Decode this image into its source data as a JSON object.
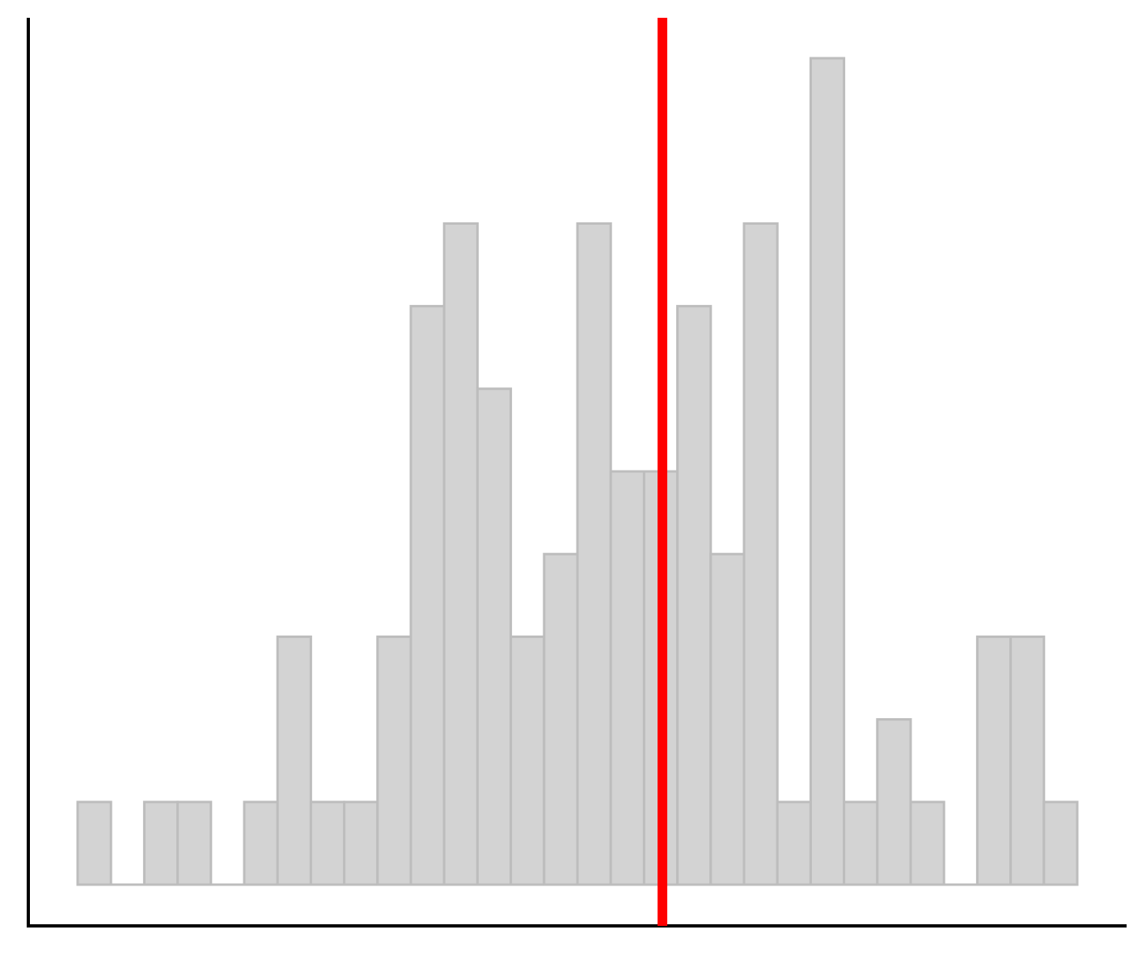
{
  "chart_data": {
    "type": "bar",
    "title": "",
    "xlabel": "",
    "ylabel": "",
    "bins": 30,
    "values": [
      1,
      0,
      1,
      1,
      0,
      1,
      3,
      1,
      1,
      3,
      7,
      8,
      6,
      3,
      4,
      8,
      5,
      5,
      7,
      4,
      8,
      1,
      10,
      1,
      2,
      1,
      0,
      3,
      3,
      1
    ],
    "ylim": [
      0,
      10.5
    ],
    "marker_bin_position": 17.55,
    "grid": false,
    "legend": "none",
    "colors": {
      "bar_fill": "#d3d3d3",
      "bar_stroke": "#bdbdbd",
      "marker": "#ff0000",
      "axis": "#000000"
    }
  }
}
